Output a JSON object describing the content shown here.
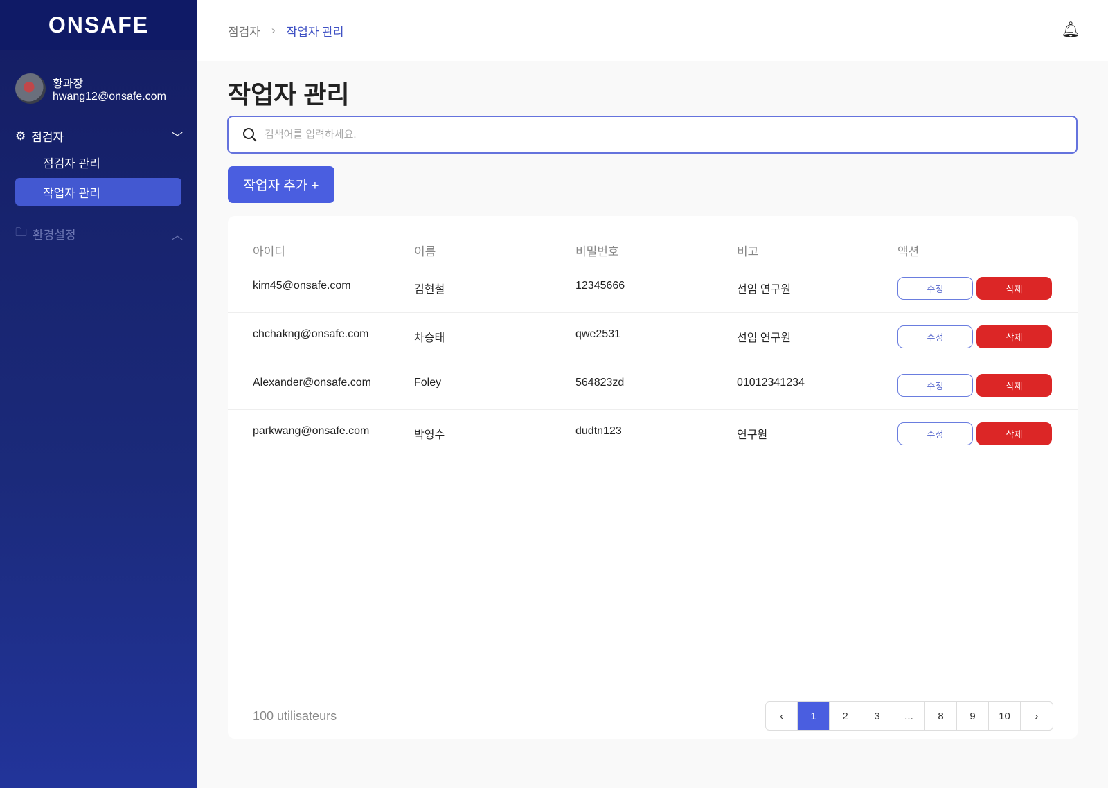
{
  "sidebar": {
    "logo": "ONSAFE",
    "user": {
      "name": "황과장",
      "email": "hwang12@onsafe.com"
    },
    "groups": [
      {
        "label": "점검자",
        "icon": "gear-icon",
        "expanded": true,
        "items": [
          {
            "label": "점검자 관리"
          },
          {
            "label": "작업자 관리",
            "active": true
          }
        ]
      },
      {
        "label": "환경설정",
        "icon": "folder-icon",
        "expanded": false
      }
    ]
  },
  "breadcrumb": [
    "점검자",
    "작업자 관리"
  ],
  "page_title": "작업자 관리",
  "search": {
    "placeholder": "검색어를 입력하세요.",
    "value": ""
  },
  "add_button": "작업자 추가 +",
  "table": {
    "headers": [
      "아이디",
      "이름",
      "비밀번호",
      "비고",
      "액션"
    ],
    "rows": [
      {
        "id": "kim45@onsafe.com",
        "name": "김현철",
        "password": "12345666",
        "note": "선임 연구원",
        "edit": "수정",
        "delete": "삭제"
      },
      {
        "id": "chchakng@onsafe.com",
        "name": "차승태",
        "password": "qwe2531",
        "note": "선임 연구원",
        "edit": "수정",
        "delete": "삭제"
      },
      {
        "id": "Alexander@onsafe.com",
        "name": "Foley",
        "password": "564823zd",
        "note": "01012341234",
        "edit": "수정",
        "delete": "삭제"
      },
      {
        "id": "parkwang@onsafe.com",
        "name": "박영수",
        "password": "dudtn123",
        "note": "연구원",
        "edit": "수정",
        "delete": "삭제"
      }
    ]
  },
  "footer": {
    "count": "100 utilisateurs",
    "pages": [
      "‹",
      "1",
      "2",
      "3",
      "...",
      "8",
      "9",
      "10",
      "›"
    ],
    "current": "1"
  },
  "colors": {
    "accent": "#4a5ee0",
    "danger": "#dc2626",
    "sidebar": "#141d63"
  }
}
